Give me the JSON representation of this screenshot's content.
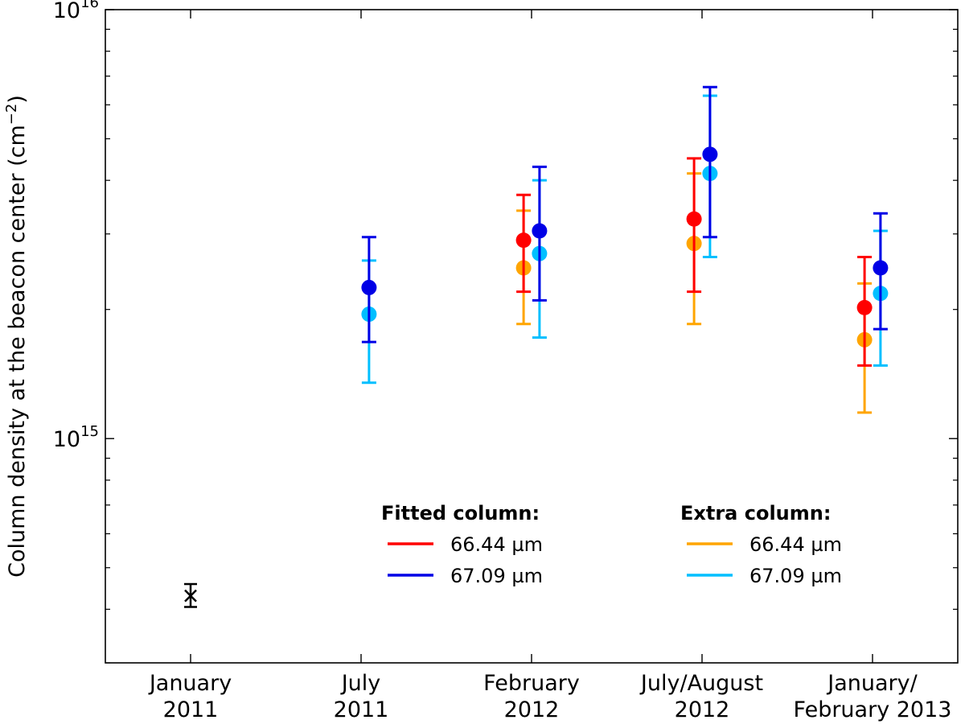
{
  "chart_data": {
    "type": "scatter",
    "y_scale": "log",
    "ylabel": "Column density at the beacon center (cm",
    "ylabel_unit_power": "−2",
    "ylabel_close": ")",
    "ylim": [
      300000000000000.0,
      1e+16
    ],
    "y_ticks": [
      {
        "value": 1000000000000000.0,
        "base": "10",
        "exp": "15"
      },
      {
        "value": 1e+16,
        "base": "10",
        "exp": "16"
      }
    ],
    "categories": [
      {
        "line1": "January",
        "line2": "2011"
      },
      {
        "line1": "July",
        "line2": "2011"
      },
      {
        "line1": "February",
        "line2": "2012"
      },
      {
        "line1": "July/August",
        "line2": "2012"
      },
      {
        "line1": "January/",
        "line2": "February 2013"
      }
    ],
    "series": [
      {
        "name": "Fitted column 66.44 µm",
        "color": "#ff0000",
        "offset": -0.09,
        "points": [
          null,
          null,
          {
            "y": 2900000000000000.0,
            "lo": 2200000000000000.0,
            "hi": 3700000000000000.0
          },
          {
            "y": 3250000000000000.0,
            "lo": 2200000000000000.0,
            "hi": 4500000000000000.0
          },
          {
            "y": 2020000000000000.0,
            "lo": 1480000000000000.0,
            "hi": 2650000000000000.0
          }
        ]
      },
      {
        "name": "Fitted column 67.09 µm",
        "color": "#0000e6",
        "offset": 0.09,
        "points": [
          null,
          {
            "y": 2250000000000000.0,
            "lo": 1680000000000000.0,
            "hi": 2950000000000000.0
          },
          {
            "y": 3050000000000000.0,
            "lo": 2100000000000000.0,
            "hi": 4300000000000000.0
          },
          {
            "y": 4600000000000000.0,
            "lo": 2950000000000000.0,
            "hi": 6600000000000000.0
          },
          {
            "y": 2500000000000000.0,
            "lo": 1800000000000000.0,
            "hi": 3350000000000000.0
          }
        ]
      },
      {
        "name": "Extra column 66.44 µm",
        "color": "#ffa500",
        "offset": -0.09,
        "points": [
          null,
          null,
          {
            "y": 2500000000000000.0,
            "lo": 1850000000000000.0,
            "hi": 3400000000000000.0
          },
          {
            "y": 2850000000000000.0,
            "lo": 1850000000000000.0,
            "hi": 4150000000000000.0
          },
          {
            "y": 1700000000000000.0,
            "lo": 1150000000000000.0,
            "hi": 2300000000000000.0
          }
        ]
      },
      {
        "name": "Extra column 67.09 µm",
        "color": "#00bfff",
        "offset": 0.09,
        "points": [
          null,
          {
            "y": 1950000000000000.0,
            "lo": 1350000000000000.0,
            "hi": 2600000000000000.0
          },
          {
            "y": 2700000000000000.0,
            "lo": 1720000000000000.0,
            "hi": 4000000000000000.0
          },
          {
            "y": 4150000000000000.0,
            "lo": 2650000000000000.0,
            "hi": 6300000000000000.0
          },
          {
            "y": 2180000000000000.0,
            "lo": 1480000000000000.0,
            "hi": 3050000000000000.0
          }
        ]
      }
    ],
    "reference_point": {
      "category_index": 0,
      "marker": "x",
      "color": "#000000",
      "y": 430000000000000.0,
      "lo": 405000000000000.0,
      "hi": 458000000000000.0
    },
    "legend": {
      "position": "lower-center",
      "groups": [
        {
          "title": "Fitted column:",
          "entries": [
            {
              "label": "66.44 µm",
              "color": "#ff0000"
            },
            {
              "label": "67.09 µm",
              "color": "#0000e6"
            }
          ]
        },
        {
          "title": "Extra column:",
          "entries": [
            {
              "label": "66.44 µm",
              "color": "#ffa500"
            },
            {
              "label": "67.09 µm",
              "color": "#00bfff"
            }
          ]
        }
      ]
    }
  }
}
